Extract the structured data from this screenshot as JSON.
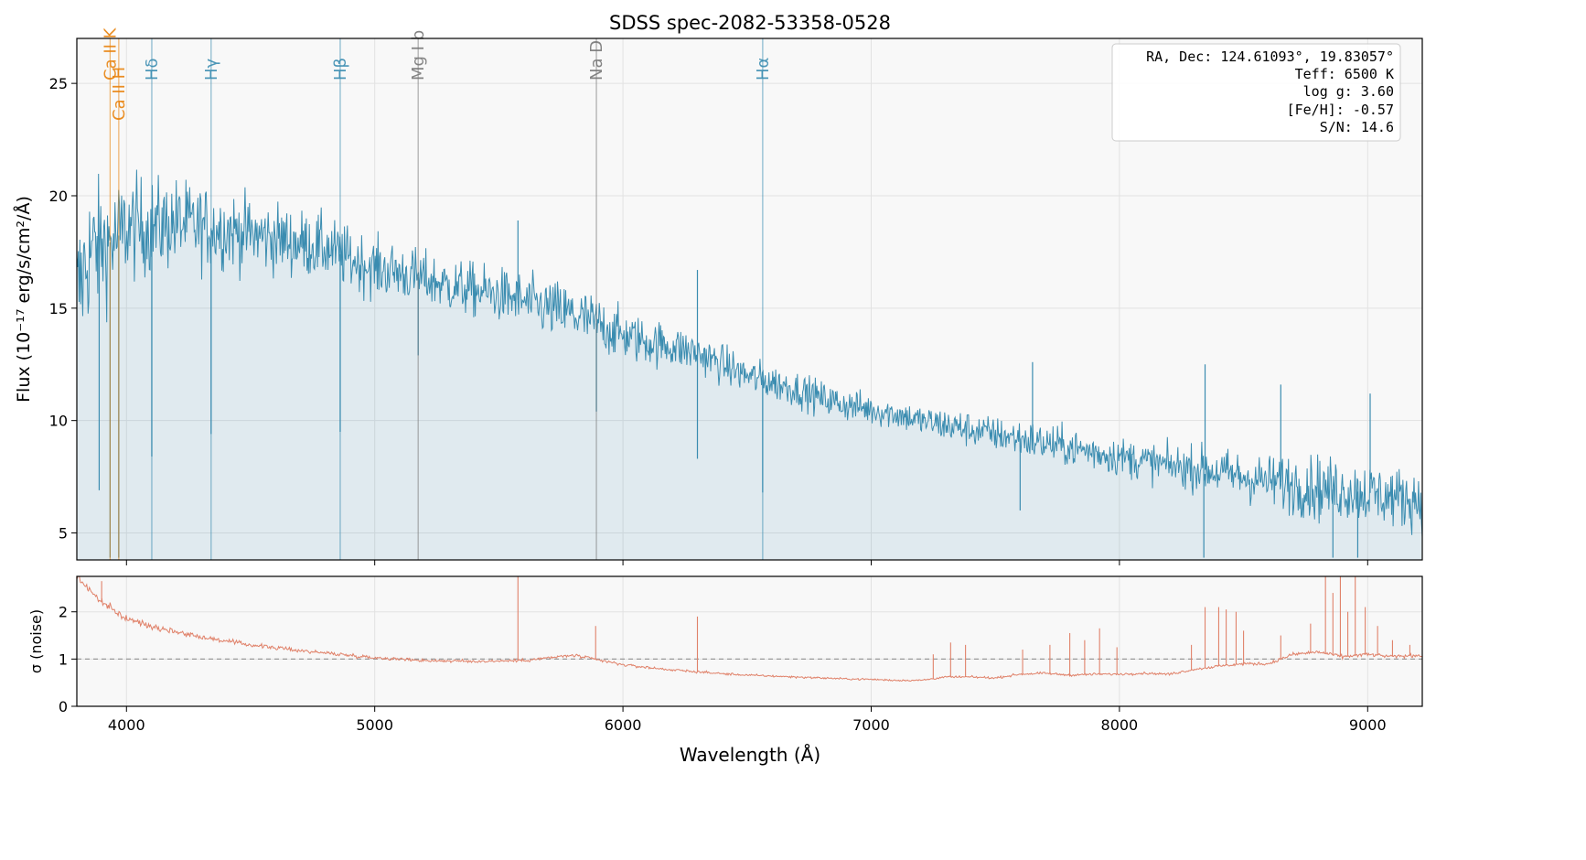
{
  "chart_data": [
    {
      "type": "line",
      "title": "SDSS spec-2082-53358-0528",
      "xlabel": "",
      "ylabel": "Flux (10⁻¹⁷ erg/s/cm²/Å)",
      "xlim": [
        3800,
        9220
      ],
      "ylim": [
        3.8,
        27.0
      ],
      "yticks": [
        5,
        10,
        15,
        20,
        25
      ],
      "xticks": [
        4000,
        5000,
        6000,
        7000,
        8000,
        9000
      ],
      "grid": true,
      "fill_under": true,
      "series": [
        {
          "name": "",
          "color": "#3a8cb0",
          "x": [
            3800,
            3850,
            3900,
            3950,
            4000,
            4100,
            4200,
            4300,
            4400,
            4500,
            4600,
            4700,
            4800,
            4900,
            5000,
            5100,
            5200,
            5300,
            5400,
            5500,
            5600,
            5700,
            5800,
            5900,
            6000,
            6100,
            6200,
            6300,
            6400,
            6500,
            6600,
            6700,
            6800,
            6900,
            7000,
            7100,
            7200,
            7300,
            7400,
            7500,
            7600,
            7700,
            7800,
            7900,
            8000,
            8100,
            8200,
            8300,
            8400,
            8500,
            8600,
            8700,
            8800,
            8900,
            9000,
            9100,
            9200
          ],
          "values": [
            15.5,
            17.5,
            17.8,
            18.0,
            18.6,
            18.6,
            18.8,
            18.6,
            18.5,
            18.3,
            18.1,
            17.9,
            17.7,
            17.2,
            16.8,
            16.6,
            16.3,
            16.0,
            15.8,
            15.6,
            15.3,
            15.0,
            14.7,
            14.3,
            13.8,
            13.5,
            13.3,
            13.0,
            12.5,
            12.0,
            11.7,
            11.4,
            11.0,
            10.7,
            10.5,
            10.3,
            10.0,
            9.8,
            9.6,
            9.4,
            9.2,
            9.0,
            8.8,
            8.6,
            8.4,
            8.2,
            8.0,
            7.9,
            7.7,
            7.5,
            7.3,
            7.2,
            7.0,
            6.9,
            6.8,
            6.6,
            6.5
          ]
        }
      ],
      "spectral_lines": [
        {
          "label": "Ca II K",
          "wavelength": 3934,
          "color": "#e8820c"
        },
        {
          "label": "Ca II H",
          "wavelength": 3969,
          "color": "#e8820c"
        },
        {
          "label": "Hδ",
          "wavelength": 4102,
          "color": "#3a8cb0"
        },
        {
          "label": "Hγ",
          "wavelength": 4341,
          "color": "#3a8cb0"
        },
        {
          "label": "Hβ",
          "wavelength": 4861,
          "color": "#3a8cb0"
        },
        {
          "label": "Mg I b",
          "wavelength": 5175,
          "color": "#777777"
        },
        {
          "label": "Na D",
          "wavelength": 5893,
          "color": "#777777"
        },
        {
          "label": "Hα",
          "wavelength": 6563,
          "color": "#3a8cb0"
        }
      ],
      "absorption_dips": [
        {
          "x": 3890,
          "y": 6.9
        },
        {
          "x": 3934,
          "y": 3.9
        },
        {
          "x": 3969,
          "y": 3.9
        },
        {
          "x": 4102,
          "y": 8.4
        },
        {
          "x": 4341,
          "y": 9.4
        },
        {
          "x": 4861,
          "y": 9.5
        },
        {
          "x": 5175,
          "y": 12.9
        },
        {
          "x": 5893,
          "y": 10.4
        },
        {
          "x": 6563,
          "y": 6.8
        },
        {
          "x": 6300,
          "y": 8.3
        },
        {
          "x": 7600,
          "y": 6.0
        },
        {
          "x": 8340,
          "y": 3.9
        },
        {
          "x": 8860,
          "y": 3.9
        },
        {
          "x": 8960,
          "y": 3.9
        }
      ],
      "spikes": [
        {
          "x": 5577,
          "y": 18.9
        },
        {
          "x": 6300,
          "y": 16.7
        },
        {
          "x": 7650,
          "y": 12.6
        },
        {
          "x": 8345,
          "y": 12.5
        },
        {
          "x": 8650,
          "y": 11.6
        },
        {
          "x": 9010,
          "y": 11.2
        }
      ],
      "info_box": [
        "RA, Dec: 124.61093°, 19.83057°",
        "Teff: 6500 K",
        "log g: 3.60",
        "[Fe/H]: -0.57",
        "S/N: 14.6"
      ]
    },
    {
      "type": "line",
      "title": "",
      "xlabel": "Wavelength (Å)",
      "ylabel": "σ (noise)",
      "xlim": [
        3800,
        9220
      ],
      "ylim": [
        0,
        2.75
      ],
      "yticks": [
        0,
        1,
        2
      ],
      "xticks": [
        4000,
        5000,
        6000,
        7000,
        8000,
        9000
      ],
      "grid": true,
      "reference_line": 1.0,
      "series": [
        {
          "name": "",
          "color": "#e0826a",
          "x": [
            3800,
            3900,
            4000,
            4100,
            4200,
            4300,
            4400,
            4500,
            4600,
            4700,
            4800,
            4900,
            5000,
            5200,
            5400,
            5600,
            5800,
            5900,
            6000,
            6100,
            6200,
            6300,
            6400,
            6500,
            6600,
            6700,
            6800,
            6900,
            7000,
            7100,
            7200,
            7300,
            7400,
            7500,
            7600,
            7700,
            7800,
            7900,
            8000,
            8100,
            8200,
            8300,
            8400,
            8500,
            8600,
            8700,
            8800,
            8900,
            9000,
            9100,
            9200
          ],
          "values": [
            2.75,
            2.2,
            1.85,
            1.7,
            1.58,
            1.47,
            1.38,
            1.3,
            1.24,
            1.18,
            1.13,
            1.08,
            1.03,
            0.97,
            0.95,
            0.97,
            1.08,
            0.98,
            0.88,
            0.82,
            0.77,
            0.73,
            0.69,
            0.66,
            0.64,
            0.62,
            0.6,
            0.58,
            0.57,
            0.55,
            0.55,
            0.62,
            0.62,
            0.6,
            0.68,
            0.7,
            0.66,
            0.68,
            0.68,
            0.7,
            0.68,
            0.78,
            0.85,
            0.9,
            0.9,
            1.1,
            1.15,
            1.05,
            1.1,
            1.05,
            1.08
          ]
        }
      ],
      "spikes": [
        {
          "x": 3900,
          "y": 2.65
        },
        {
          "x": 5577,
          "y": 2.75
        },
        {
          "x": 5890,
          "y": 1.7
        },
        {
          "x": 6300,
          "y": 1.9
        },
        {
          "x": 7250,
          "y": 1.1
        },
        {
          "x": 7320,
          "y": 1.35
        },
        {
          "x": 7380,
          "y": 1.3
        },
        {
          "x": 7610,
          "y": 1.2
        },
        {
          "x": 7720,
          "y": 1.3
        },
        {
          "x": 7800,
          "y": 1.55
        },
        {
          "x": 7860,
          "y": 1.4
        },
        {
          "x": 7920,
          "y": 1.65
        },
        {
          "x": 7990,
          "y": 1.25
        },
        {
          "x": 8290,
          "y": 1.3
        },
        {
          "x": 8345,
          "y": 2.1
        },
        {
          "x": 8400,
          "y": 2.1
        },
        {
          "x": 8430,
          "y": 2.05
        },
        {
          "x": 8470,
          "y": 2.0
        },
        {
          "x": 8500,
          "y": 1.6
        },
        {
          "x": 8650,
          "y": 1.5
        },
        {
          "x": 8770,
          "y": 1.75
        },
        {
          "x": 8830,
          "y": 2.75
        },
        {
          "x": 8860,
          "y": 2.4
        },
        {
          "x": 8890,
          "y": 2.75
        },
        {
          "x": 8920,
          "y": 2.0
        },
        {
          "x": 8950,
          "y": 2.75
        },
        {
          "x": 8990,
          "y": 2.1
        },
        {
          "x": 9040,
          "y": 1.7
        },
        {
          "x": 9100,
          "y": 1.4
        },
        {
          "x": 9170,
          "y": 1.3
        }
      ]
    }
  ]
}
